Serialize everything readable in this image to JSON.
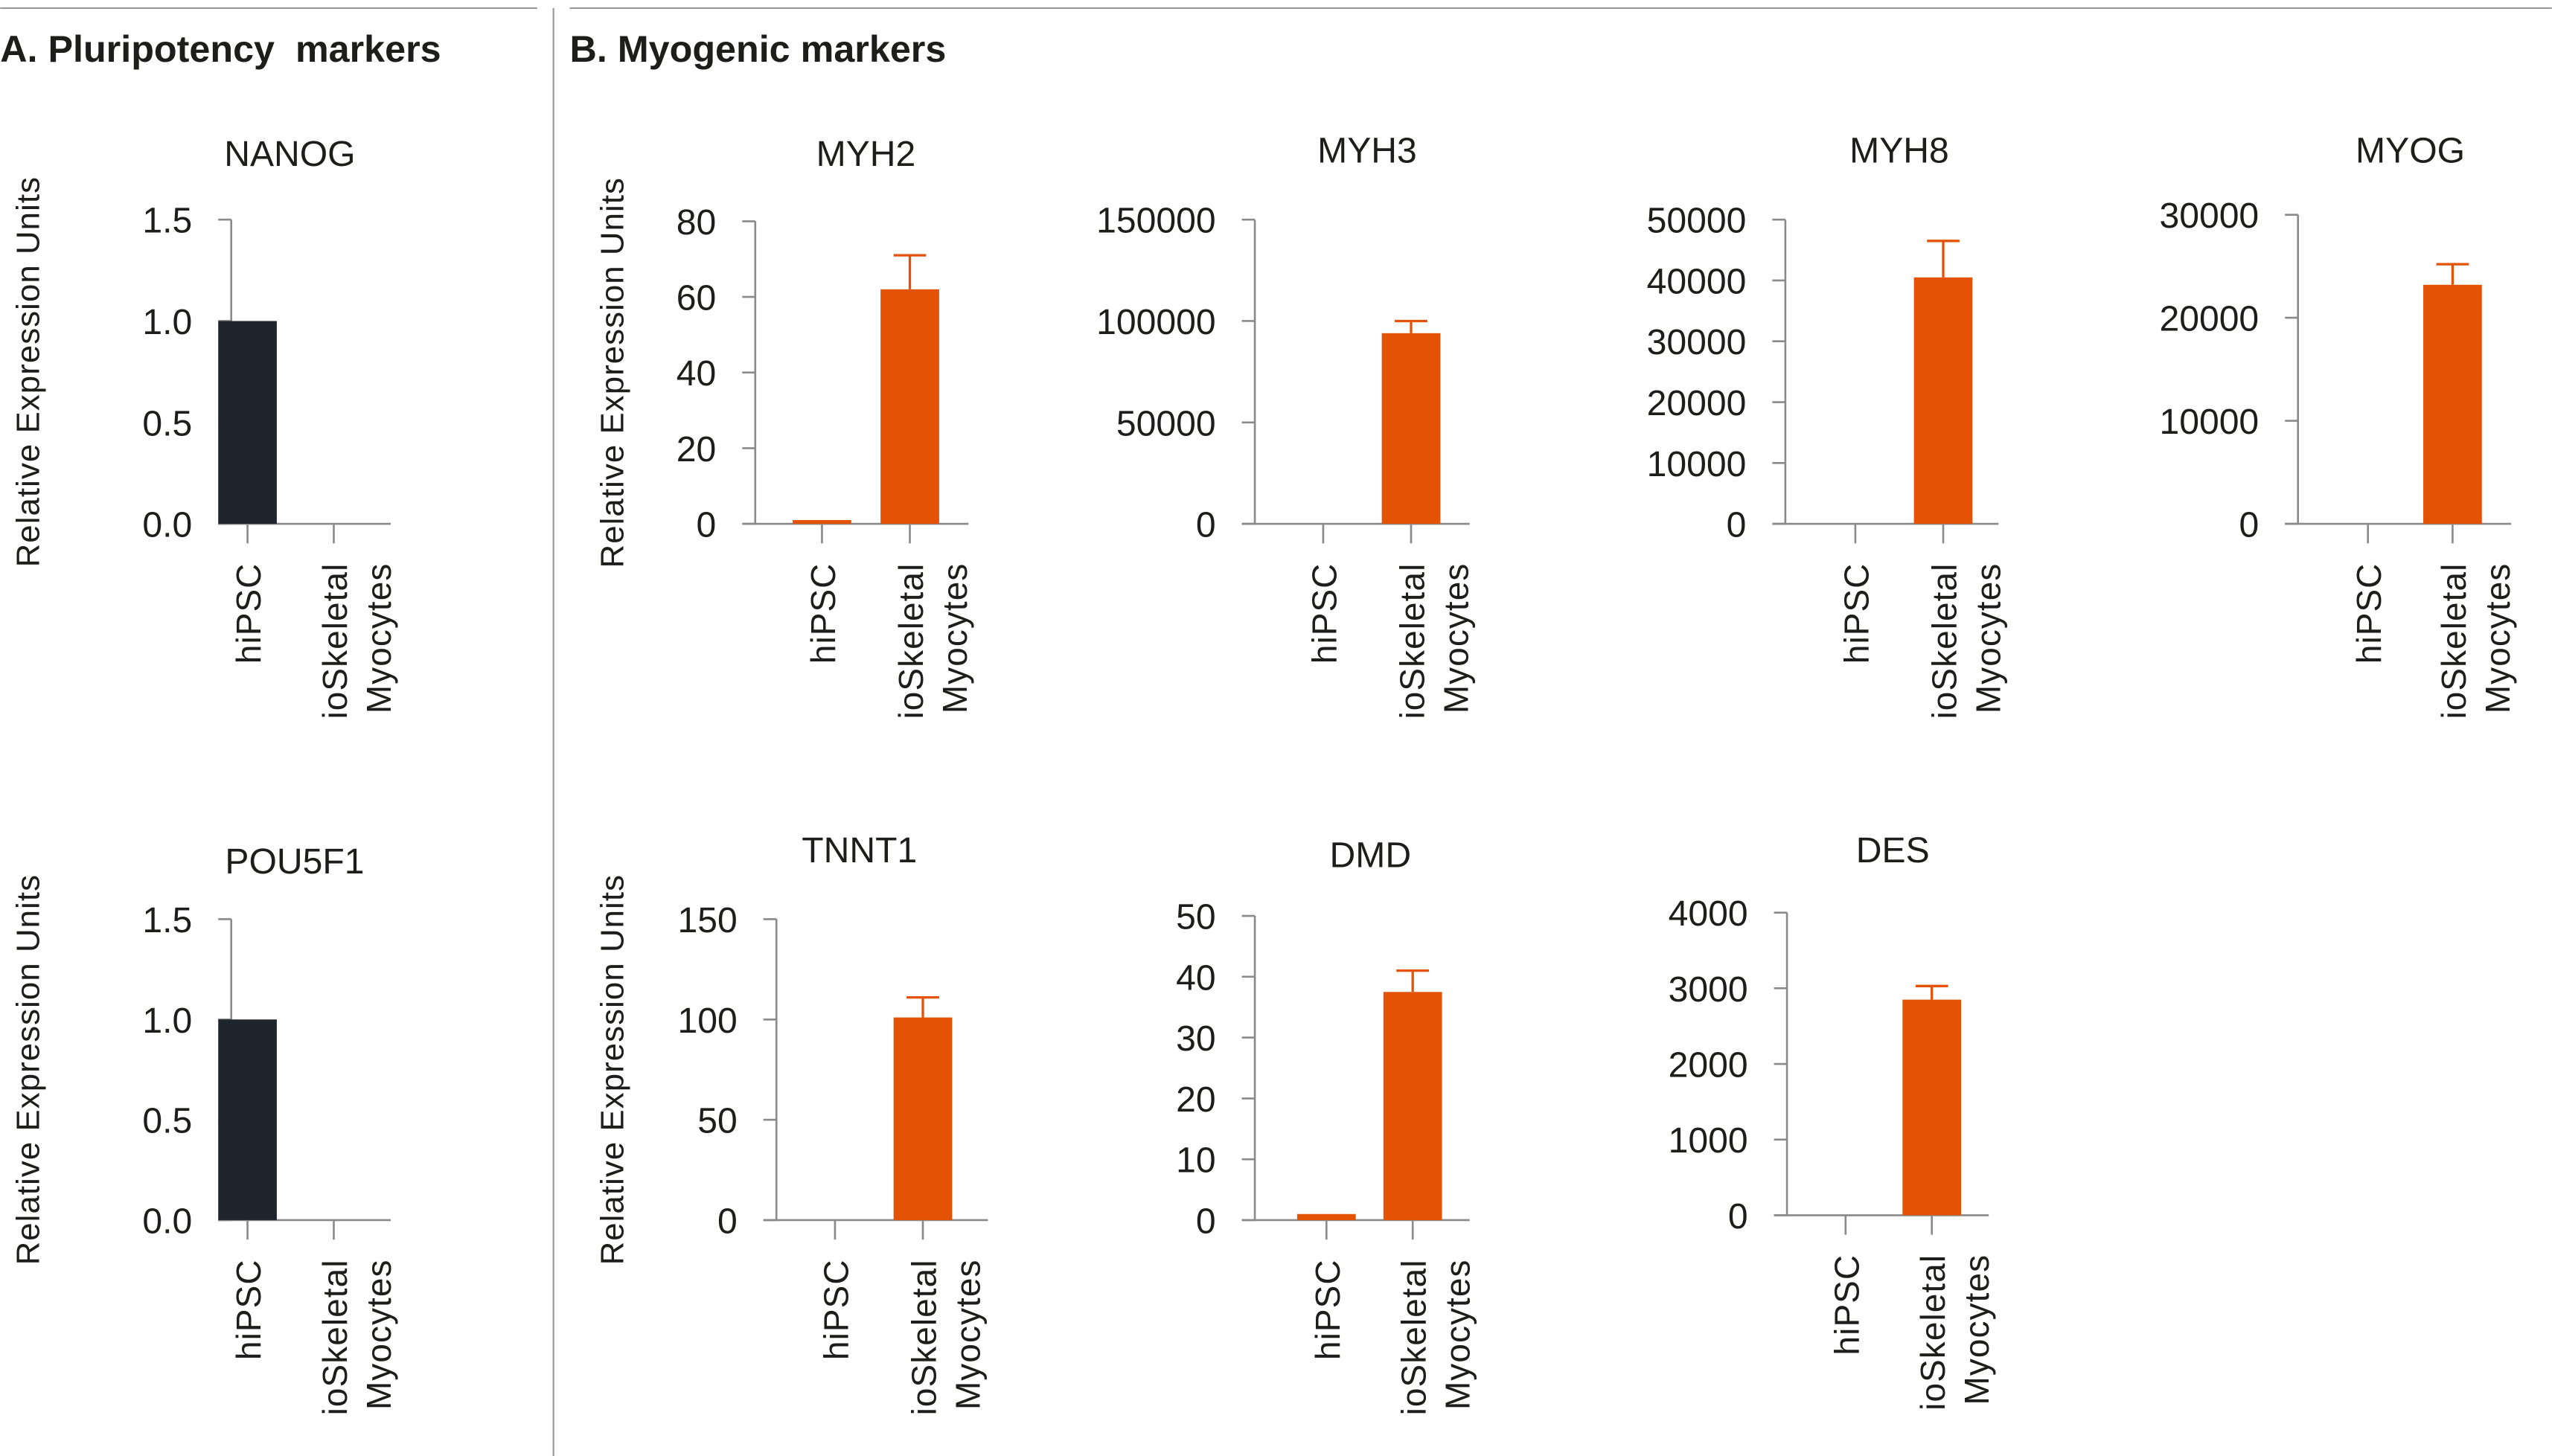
{
  "sections": {
    "a_title": "A. Pluripotency  markers",
    "b_title": "B. Myogenic markers"
  },
  "colors": {
    "hiPSC_pluripotency": "#1f252c",
    "myogenic": "#e35205",
    "axis": "#8a8a8a"
  },
  "chart_data": [
    {
      "type": "bar",
      "title": "NANOG",
      "ylabel": "Relative Expression Units",
      "categories": [
        "hiPSC",
        [
          "ioSkeletal",
          "Myocytes"
        ]
      ],
      "values": [
        1.0,
        0
      ],
      "error_upper": [
        null,
        null
      ],
      "ylim": [
        0,
        1.5
      ],
      "yticks": [
        "0.0",
        "0.5",
        "1.0",
        "1.5"
      ],
      "bar_color": "#1f252c",
      "grid": false
    },
    {
      "type": "bar",
      "title": "POU5F1",
      "ylabel": "Relative Expression Units",
      "categories": [
        "hiPSC",
        [
          "ioSkeletal",
          "Myocytes"
        ]
      ],
      "values": [
        1.0,
        0
      ],
      "error_upper": [
        null,
        null
      ],
      "ylim": [
        0,
        1.5
      ],
      "yticks": [
        "0.0",
        "0.5",
        "1.0",
        "1.5"
      ],
      "bar_color": "#1f252c",
      "grid": false
    },
    {
      "type": "bar",
      "title": "MYH2",
      "ylabel": "Relative Expression Units",
      "categories": [
        "hiPSC",
        [
          "ioSkeletal",
          "Myocytes"
        ]
      ],
      "values": [
        1,
        62
      ],
      "error_upper": [
        null,
        71
      ],
      "ylim": [
        0,
        80
      ],
      "yticks": [
        "0",
        "20",
        "40",
        "60",
        "80"
      ],
      "bar_color": "#e35205",
      "grid": false
    },
    {
      "type": "bar",
      "title": "MYH3",
      "ylabel": "",
      "categories": [
        "hiPSC",
        [
          "ioSkeletal",
          "Myocytes"
        ]
      ],
      "values": [
        0,
        94000
      ],
      "error_upper": [
        null,
        100000
      ],
      "ylim": [
        0,
        150000
      ],
      "yticks": [
        "0",
        "50000",
        "100000",
        "150000"
      ],
      "bar_color": "#e35205",
      "grid": false
    },
    {
      "type": "bar",
      "title": "MYH8",
      "ylabel": "",
      "categories": [
        "hiPSC",
        [
          "ioSkeletal",
          "Myocytes"
        ]
      ],
      "values": [
        0,
        40500
      ],
      "error_upper": [
        null,
        46500
      ],
      "ylim": [
        0,
        50000
      ],
      "yticks": [
        "0",
        "10000",
        "20000",
        "30000",
        "40000",
        "50000"
      ],
      "bar_color": "#e35205",
      "grid": false
    },
    {
      "type": "bar",
      "title": "MYOG",
      "ylabel": "",
      "categories": [
        "hiPSC",
        [
          "ioSkeletal",
          "Myocytes"
        ]
      ],
      "values": [
        0,
        23200
      ],
      "error_upper": [
        null,
        25200
      ],
      "ylim": [
        0,
        30000
      ],
      "yticks": [
        "0",
        "10000",
        "20000",
        "30000"
      ],
      "bar_color": "#e35205",
      "grid": false
    },
    {
      "type": "bar",
      "title": "TNNT1",
      "ylabel": "Relative Expression Units",
      "categories": [
        "hiPSC",
        [
          "ioSkeletal",
          "Myocytes"
        ]
      ],
      "values": [
        0,
        101
      ],
      "error_upper": [
        null,
        111
      ],
      "ylim": [
        0,
        150
      ],
      "yticks": [
        "0",
        "50",
        "100",
        "150"
      ],
      "bar_color": "#e35205",
      "grid": false
    },
    {
      "type": "bar",
      "title": "DMD",
      "ylabel": "",
      "categories": [
        "hiPSC",
        [
          "ioSkeletal",
          "Myocytes"
        ]
      ],
      "values": [
        1,
        37.5
      ],
      "error_upper": [
        null,
        41
      ],
      "ylim": [
        0,
        50
      ],
      "yticks": [
        "0",
        "10",
        "20",
        "30",
        "40",
        "50"
      ],
      "bar_color": "#e35205",
      "grid": false
    },
    {
      "type": "bar",
      "title": "DES",
      "ylabel": "",
      "categories": [
        "hiPSC",
        [
          "ioSkeletal",
          "Myocytes"
        ]
      ],
      "values": [
        0,
        2850
      ],
      "error_upper": [
        null,
        3030
      ],
      "ylim": [
        0,
        4000
      ],
      "yticks": [
        "0",
        "1000",
        "2000",
        "3000",
        "4000"
      ],
      "bar_color": "#e35205",
      "grid": false
    }
  ]
}
